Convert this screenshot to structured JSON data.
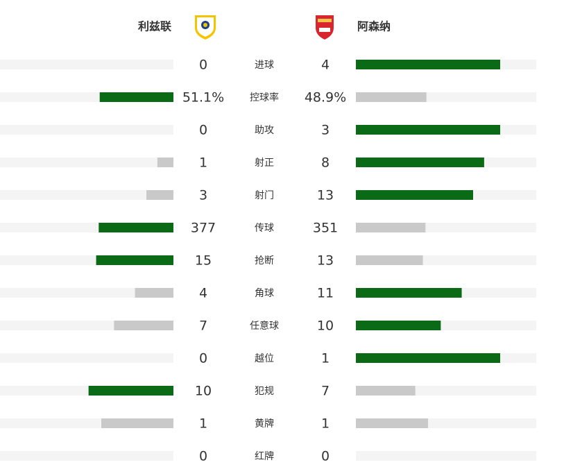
{
  "home": {
    "name": "利兹联"
  },
  "away": {
    "name": "阿森纳"
  },
  "stats": [
    {
      "label": "进球",
      "home": 0,
      "away": 4
    },
    {
      "label": "控球率",
      "home": 51.1,
      "away": 48.9,
      "home_label": "51.1%",
      "away_label": "48.9%"
    },
    {
      "label": "助攻",
      "home": 0,
      "away": 3
    },
    {
      "label": "射正",
      "home": 1,
      "away": 8
    },
    {
      "label": "射门",
      "home": 3,
      "away": 13
    },
    {
      "label": "传球",
      "home": 377,
      "away": 351
    },
    {
      "label": "抢断",
      "home": 15,
      "away": 13
    },
    {
      "label": "角球",
      "home": 4,
      "away": 11
    },
    {
      "label": "任意球",
      "home": 7,
      "away": 10
    },
    {
      "label": "越位",
      "home": 0,
      "away": 1
    },
    {
      "label": "犯规",
      "home": 10,
      "away": 7
    },
    {
      "label": "黄牌",
      "home": 1,
      "away": 1
    },
    {
      "label": "红牌",
      "home": 0,
      "away": 0
    }
  ]
}
